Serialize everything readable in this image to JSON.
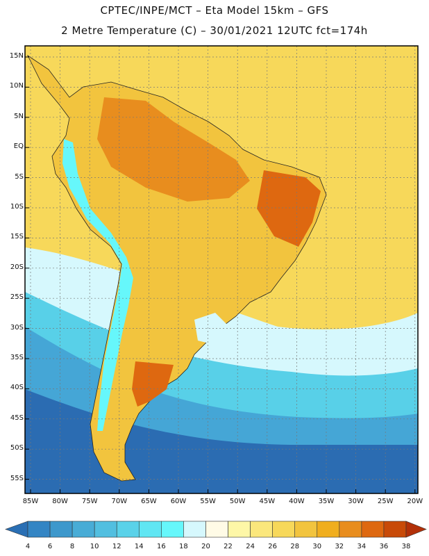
{
  "title": {
    "line1": "CPTEC/INPE/MCT –  Eta Model 15km – GFS",
    "line2": "2 Metre Temperature (C) – 30/01/2021 12UTC fct=174h"
  },
  "axes": {
    "lat_labels": [
      "15N",
      "10N",
      "5N",
      "EQ",
      "5S",
      "10S",
      "15S",
      "20S",
      "25S",
      "30S",
      "35S",
      "40S",
      "45S",
      "50S",
      "55S"
    ],
    "lon_labels": [
      "85W",
      "80W",
      "75W",
      "70W",
      "65W",
      "60W",
      "55W",
      "50W",
      "45W",
      "40W",
      "35W",
      "30W",
      "25W",
      "20W"
    ]
  },
  "colorbar": {
    "ticks": [
      "4",
      "6",
      "8",
      "10",
      "12",
      "14",
      "16",
      "18",
      "20",
      "22",
      "24",
      "26",
      "28",
      "30",
      "32",
      "34",
      "36",
      "38"
    ],
    "colors": [
      "#2a6fb4",
      "#3385c4",
      "#3d98cc",
      "#48acd6",
      "#52bfe0",
      "#5ad2e9",
      "#60e6f3",
      "#66f7fb",
      "#d6f8fd",
      "#fffbe6",
      "#fef7a7",
      "#fbe77c",
      "#f7d85a",
      "#f2c43e",
      "#f0ae1e",
      "#e88d1e",
      "#de6810",
      "#c84a08",
      "#b23008"
    ]
  },
  "map": {
    "type": "filled contour",
    "variable": "2 Metre Temperature (C)",
    "colors": {
      "ocean_far_south": "#2b6cb2",
      "ocean_cold": "#45a6d6",
      "ocean_mid": "#58d0e8",
      "ocean_cool": "#d6f8fd",
      "ocean_warm": "#fbe77c",
      "ocean_tropic": "#f7d85a",
      "land": "#f2c43e",
      "land_hot": "#e88d1e",
      "land_hotter": "#de6810",
      "andes": "#66f7fb"
    }
  }
}
